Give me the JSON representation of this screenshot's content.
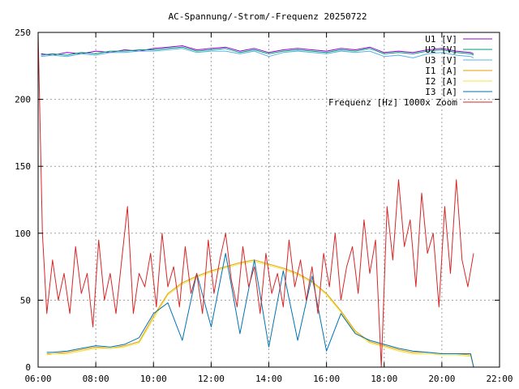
{
  "chart_data": {
    "type": "line",
    "title": "AC-Spannung/-Strom/-Frequenz 20250722",
    "xlabel": "",
    "ylabel": "",
    "xlim": [
      6.0,
      22.0
    ],
    "ylim": [
      0,
      250
    ],
    "grid": true,
    "x_ticks": [
      {
        "v": 6,
        "label": "06:00"
      },
      {
        "v": 8,
        "label": "08:00"
      },
      {
        "v": 10,
        "label": "10:00"
      },
      {
        "v": 12,
        "label": "12:00"
      },
      {
        "v": 14,
        "label": "14:00"
      },
      {
        "v": 16,
        "label": "16:00"
      },
      {
        "v": 18,
        "label": "18:00"
      },
      {
        "v": 20,
        "label": "20:00"
      },
      {
        "v": 22,
        "label": "22:00"
      }
    ],
    "y_ticks": [
      {
        "v": 0,
        "label": "0"
      },
      {
        "v": 50,
        "label": "50"
      },
      {
        "v": 100,
        "label": "100"
      },
      {
        "v": 150,
        "label": "150"
      },
      {
        "v": 200,
        "label": "200"
      },
      {
        "v": 250,
        "label": "250"
      }
    ],
    "legend_position": "top-right",
    "series": [
      {
        "name": "U1 [V]",
        "color": "#9400d3",
        "x": [
          6.1,
          6.5,
          7.0,
          7.5,
          8.0,
          8.5,
          9.0,
          9.5,
          10.0,
          10.5,
          11.0,
          11.5,
          12.0,
          12.5,
          13.0,
          13.5,
          14.0,
          14.5,
          15.0,
          15.5,
          16.0,
          16.5,
          17.0,
          17.5,
          18.0,
          18.5,
          19.0,
          19.5,
          20.0,
          20.5,
          21.0,
          21.1
        ],
        "values": [
          234,
          233,
          235,
          234,
          236,
          235,
          237,
          236,
          238,
          239,
          240,
          237,
          238,
          239,
          236,
          238,
          235,
          237,
          238,
          237,
          236,
          238,
          237,
          239,
          235,
          236,
          235,
          237,
          238,
          236,
          235,
          234
        ]
      },
      {
        "name": "U2 [V]",
        "color": "#009e73",
        "x": [
          6.1,
          6.5,
          7.0,
          7.5,
          8.0,
          8.5,
          9.0,
          9.5,
          10.0,
          10.5,
          11.0,
          11.5,
          12.0,
          12.5,
          13.0,
          13.5,
          14.0,
          14.5,
          15.0,
          15.5,
          16.0,
          16.5,
          17.0,
          17.5,
          18.0,
          18.5,
          19.0,
          19.5,
          20.0,
          20.5,
          21.0,
          21.1
        ],
        "values": [
          233,
          234,
          233,
          235,
          234,
          236,
          236,
          237,
          237,
          238,
          239,
          236,
          237,
          238,
          235,
          237,
          234,
          236,
          237,
          236,
          235,
          237,
          236,
          238,
          234,
          235,
          234,
          236,
          237,
          235,
          234,
          233
        ]
      },
      {
        "name": "U3 [V]",
        "color": "#56b4e9",
        "x": [
          6.1,
          6.5,
          7.0,
          7.5,
          8.0,
          8.5,
          9.0,
          9.5,
          10.0,
          10.5,
          11.0,
          11.5,
          12.0,
          12.5,
          13.0,
          13.5,
          14.0,
          14.5,
          15.0,
          15.5,
          16.0,
          16.5,
          17.0,
          17.5,
          18.0,
          18.5,
          19.0,
          19.5,
          20.0,
          20.5,
          21.0,
          21.1
        ],
        "values": [
          232,
          233,
          232,
          234,
          233,
          235,
          235,
          236,
          236,
          237,
          238,
          235,
          236,
          236,
          234,
          236,
          232,
          235,
          236,
          235,
          234,
          236,
          235,
          236,
          232,
          233,
          231,
          234,
          235,
          233,
          232,
          231
        ]
      },
      {
        "name": "I1 [A]",
        "color": "#e69f00",
        "x": [
          6.3,
          6.5,
          7.0,
          7.5,
          8.0,
          8.5,
          9.0,
          9.5,
          10.0,
          10.5,
          11.0,
          11.5,
          12.0,
          12.5,
          13.0,
          13.5,
          14.0,
          14.5,
          15.0,
          15.5,
          16.0,
          16.5,
          17.0,
          17.5,
          18.0,
          18.5,
          19.0,
          19.5,
          20.0,
          20.5,
          21.0,
          21.1
        ],
        "values": [
          10,
          10,
          11,
          13,
          15,
          14,
          16,
          19,
          38,
          55,
          63,
          68,
          72,
          75,
          78,
          80,
          77,
          74,
          70,
          64,
          55,
          42,
          27,
          19,
          16,
          13,
          11,
          11,
          10,
          10,
          9,
          0
        ]
      },
      {
        "name": "I2 [A]",
        "color": "#f0e442",
        "x": [
          6.3,
          6.5,
          7.0,
          7.5,
          8.0,
          8.5,
          9.0,
          9.5,
          10.0,
          10.5,
          11.0,
          11.5,
          12.0,
          12.5,
          13.0,
          13.5,
          14.0,
          14.5,
          15.0,
          15.5,
          16.0,
          16.5,
          17.0,
          17.5,
          18.0,
          18.5,
          19.0,
          19.5,
          20.0,
          20.5,
          21.0,
          21.1
        ],
        "values": [
          9,
          10,
          10,
          12,
          14,
          14,
          15,
          18,
          36,
          54,
          62,
          67,
          71,
          74,
          77,
          79,
          76,
          73,
          69,
          63,
          54,
          41,
          26,
          18,
          15,
          12,
          10,
          10,
          9,
          9,
          8,
          0
        ]
      },
      {
        "name": "I3 [A]",
        "color": "#0072b2",
        "x": [
          6.3,
          6.5,
          7.0,
          7.5,
          8.0,
          8.5,
          9.0,
          9.5,
          10.0,
          10.5,
          11.0,
          11.5,
          12.0,
          12.5,
          13.0,
          13.5,
          14.0,
          14.5,
          15.0,
          15.5,
          16.0,
          16.5,
          17.0,
          17.5,
          18.0,
          18.5,
          19.0,
          19.5,
          20.0,
          20.5,
          21.0,
          21.1
        ],
        "values": [
          11,
          11,
          12,
          14,
          16,
          15,
          17,
          22,
          40,
          48,
          20,
          70,
          30,
          85,
          25,
          80,
          15,
          72,
          20,
          68,
          12,
          40,
          25,
          20,
          17,
          14,
          12,
          11,
          10,
          10,
          10,
          0
        ]
      },
      {
        "name": "Frequenz [Hz] 1000x Zoom",
        "color": "#d62728",
        "x": [
          6.0,
          6.15,
          6.3,
          6.5,
          6.7,
          6.9,
          7.1,
          7.3,
          7.5,
          7.7,
          7.9,
          8.1,
          8.3,
          8.5,
          8.7,
          8.9,
          9.1,
          9.3,
          9.5,
          9.7,
          9.9,
          10.1,
          10.3,
          10.5,
          10.7,
          10.9,
          11.1,
          11.3,
          11.5,
          11.7,
          11.9,
          12.1,
          12.3,
          12.5,
          12.7,
          12.9,
          13.1,
          13.3,
          13.5,
          13.7,
          13.9,
          14.1,
          14.3,
          14.5,
          14.7,
          14.9,
          15.1,
          15.3,
          15.5,
          15.7,
          15.9,
          16.1,
          16.3,
          16.5,
          16.7,
          16.9,
          17.1,
          17.3,
          17.5,
          17.7,
          17.9,
          18.1,
          18.3,
          18.5,
          18.7,
          18.9,
          19.1,
          19.3,
          19.5,
          19.7,
          19.9,
          20.1,
          20.3,
          20.5,
          20.7,
          20.9,
          21.1
        ],
        "values": [
          250,
          100,
          40,
          80,
          50,
          70,
          40,
          90,
          55,
          70,
          30,
          95,
          50,
          70,
          40,
          80,
          120,
          40,
          70,
          60,
          85,
          45,
          100,
          60,
          75,
          45,
          90,
          55,
          70,
          40,
          95,
          55,
          80,
          100,
          65,
          45,
          90,
          60,
          75,
          40,
          85,
          55,
          70,
          45,
          95,
          60,
          80,
          50,
          75,
          40,
          85,
          60,
          100,
          50,
          75,
          90,
          55,
          110,
          70,
          95,
          0,
          120,
          80,
          140,
          90,
          110,
          60,
          130,
          85,
          100,
          45,
          120,
          70,
          140,
          80,
          60,
          85
        ]
      }
    ]
  }
}
